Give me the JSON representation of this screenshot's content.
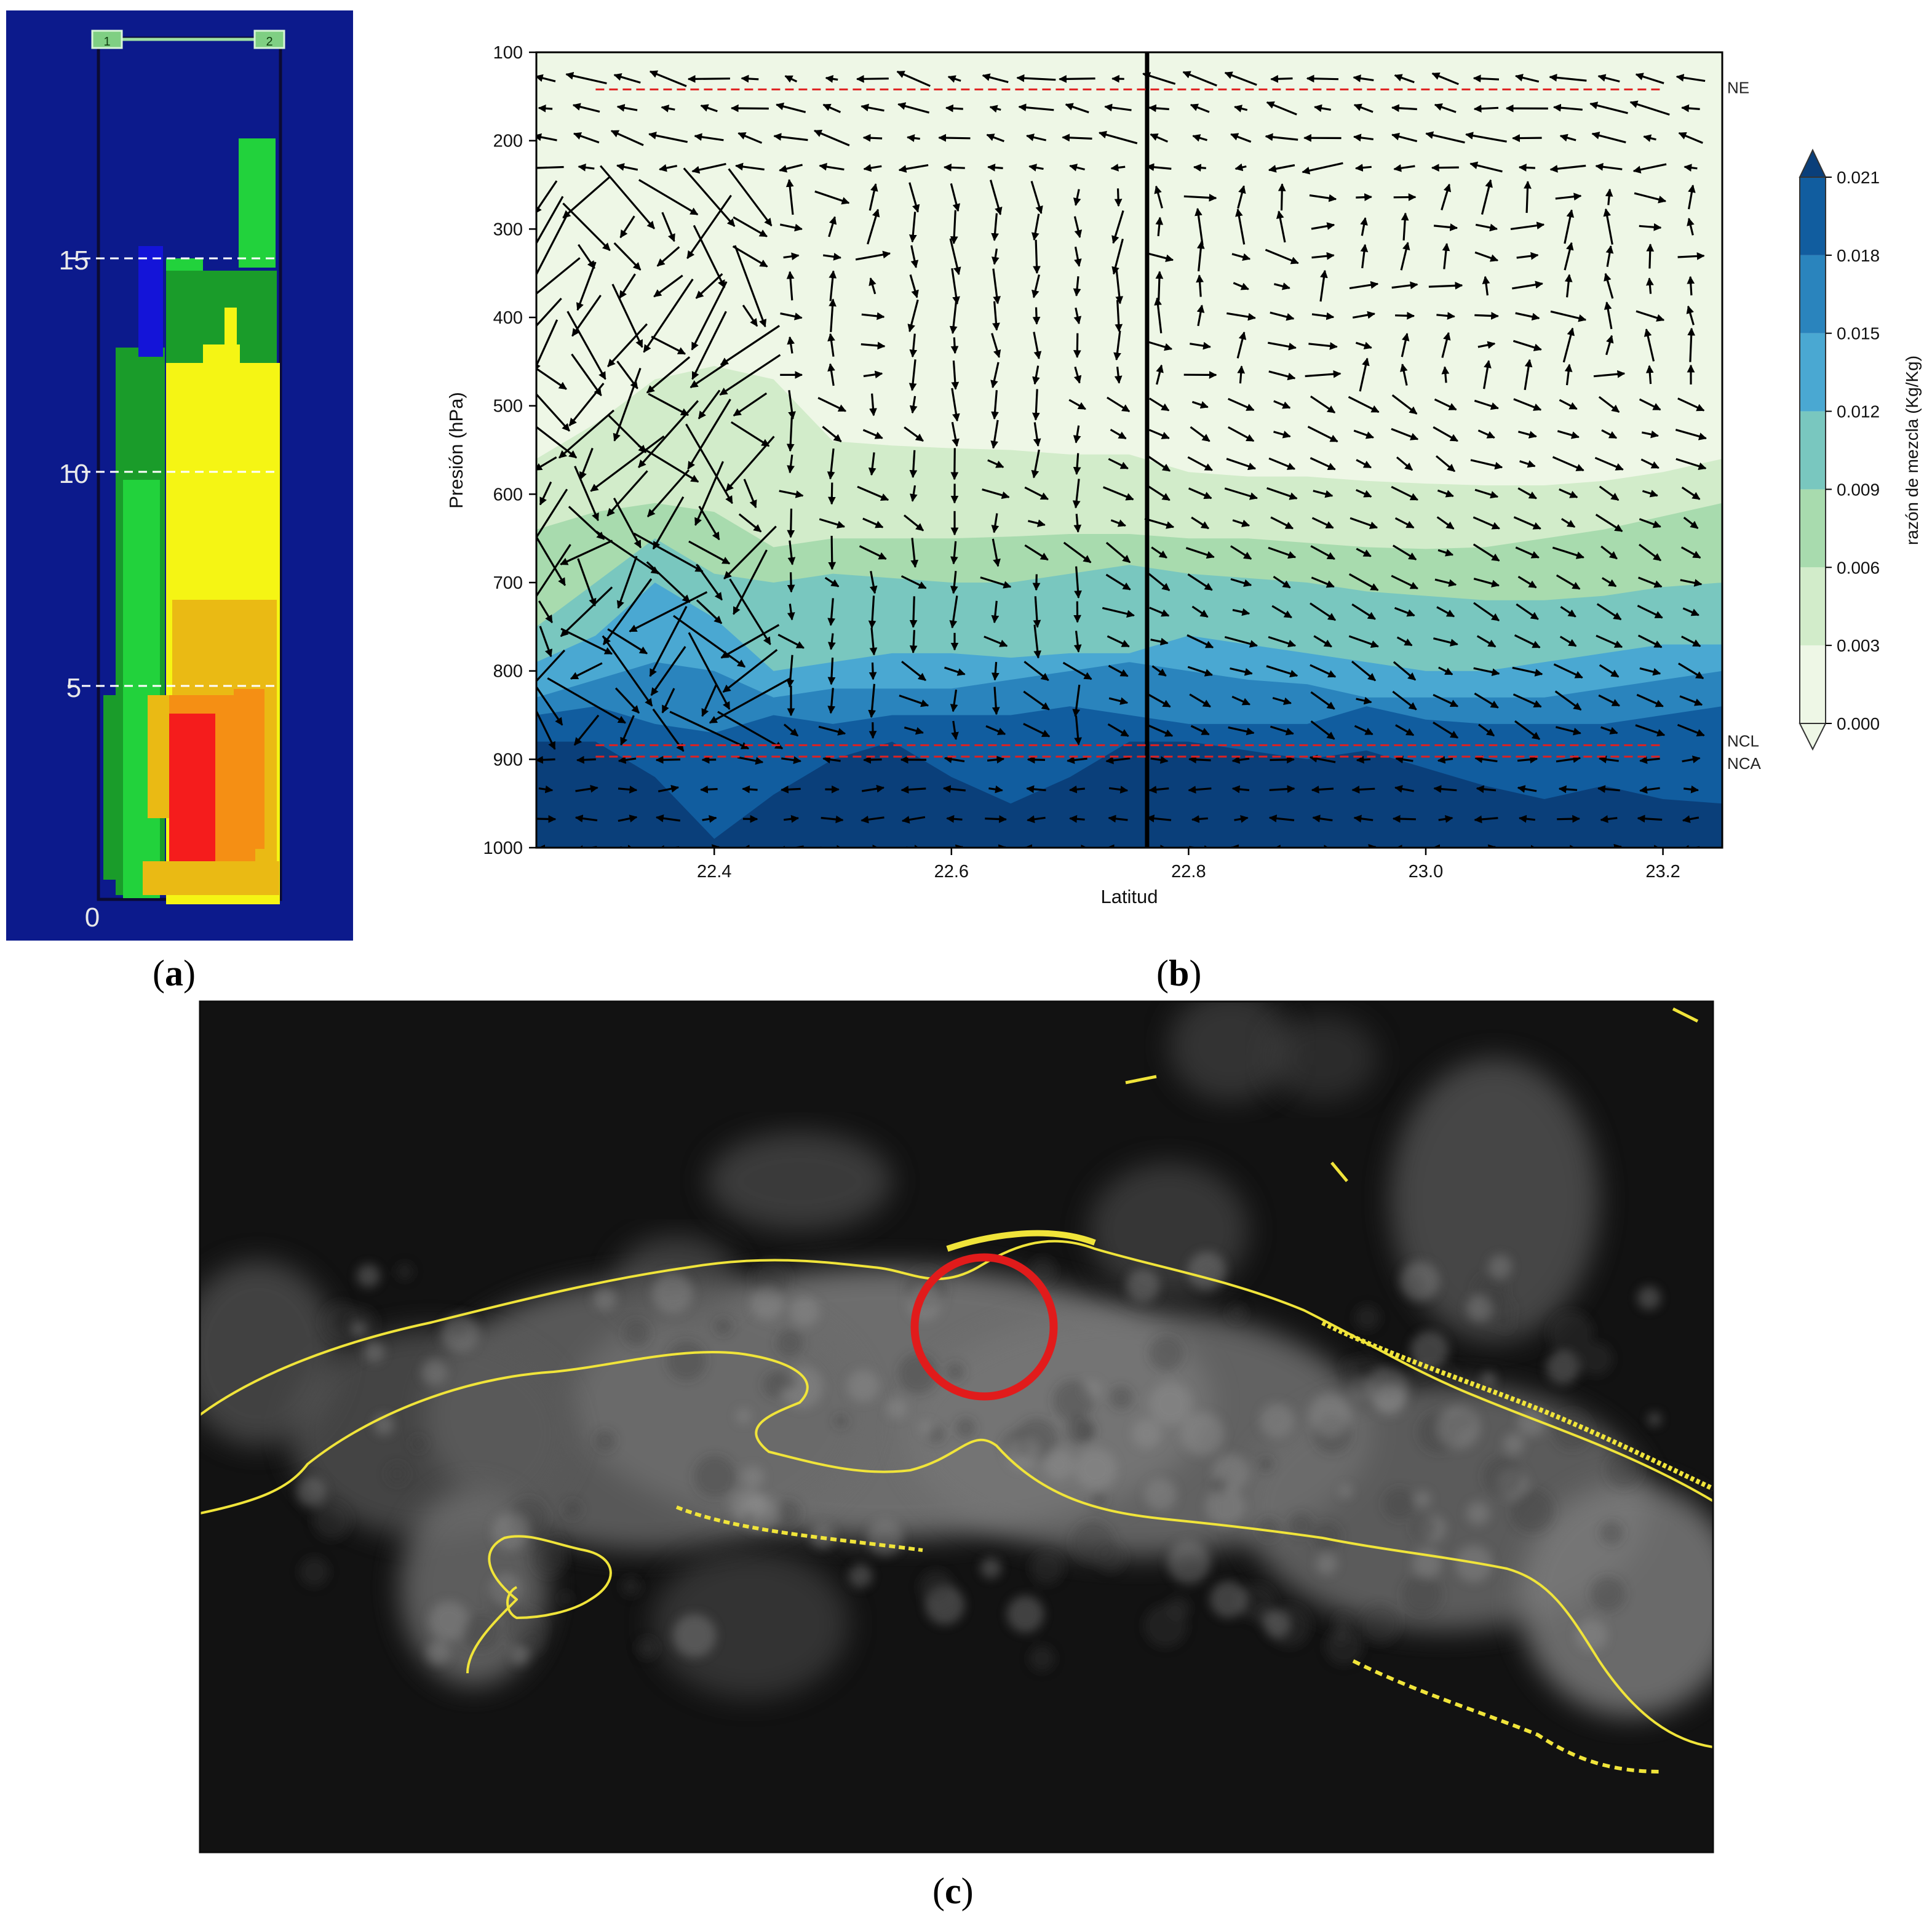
{
  "captions": {
    "a": "a",
    "b": "b",
    "c": "c"
  },
  "panel_a": {
    "markers": [
      "1",
      "2"
    ],
    "height_ticks": [
      "0",
      "5",
      "10",
      "15"
    ]
  },
  "chart_data": {
    "type": "heatmap",
    "description_kind": "pressure-latitude cross section",
    "xlabel": "Latitud",
    "ylabel": "Presión (hPa)",
    "xlim": [
      22.25,
      23.25
    ],
    "ylim": [
      1000,
      100
    ],
    "x_ticks": [
      "22.4",
      "22.6",
      "22.8",
      "23.0",
      "23.2"
    ],
    "y_ticks": [
      "100",
      "200",
      "300",
      "400",
      "500",
      "600",
      "700",
      "800",
      "900",
      "1000"
    ],
    "colorbar": {
      "label": "razón de mezcla (Kg/Kg)",
      "levels": [
        "0.000",
        "0.003",
        "0.006",
        "0.009",
        "0.012",
        "0.015",
        "0.018",
        "0.021"
      ],
      "colors": [
        "#eef7e6",
        "#d2ecca",
        "#a8dbae",
        "#79c7bf",
        "#4aa8d2",
        "#2a84bd",
        "#115d9f",
        "#0a3f7a"
      ]
    },
    "reference_lines": [
      {
        "label": "NE",
        "pressure": 142,
        "color": "#e02020"
      },
      {
        "label": "NCL",
        "pressure": 884,
        "color": "#e02020"
      },
      {
        "label": "NCA",
        "pressure": 897,
        "color": "#e02020"
      }
    ],
    "vertical_line_latitude": 22.765
  },
  "panel_c": {
    "kind": "satellite visible image",
    "colors": {
      "coast": "#f0e43a",
      "highlight": "#e11b1b"
    }
  }
}
